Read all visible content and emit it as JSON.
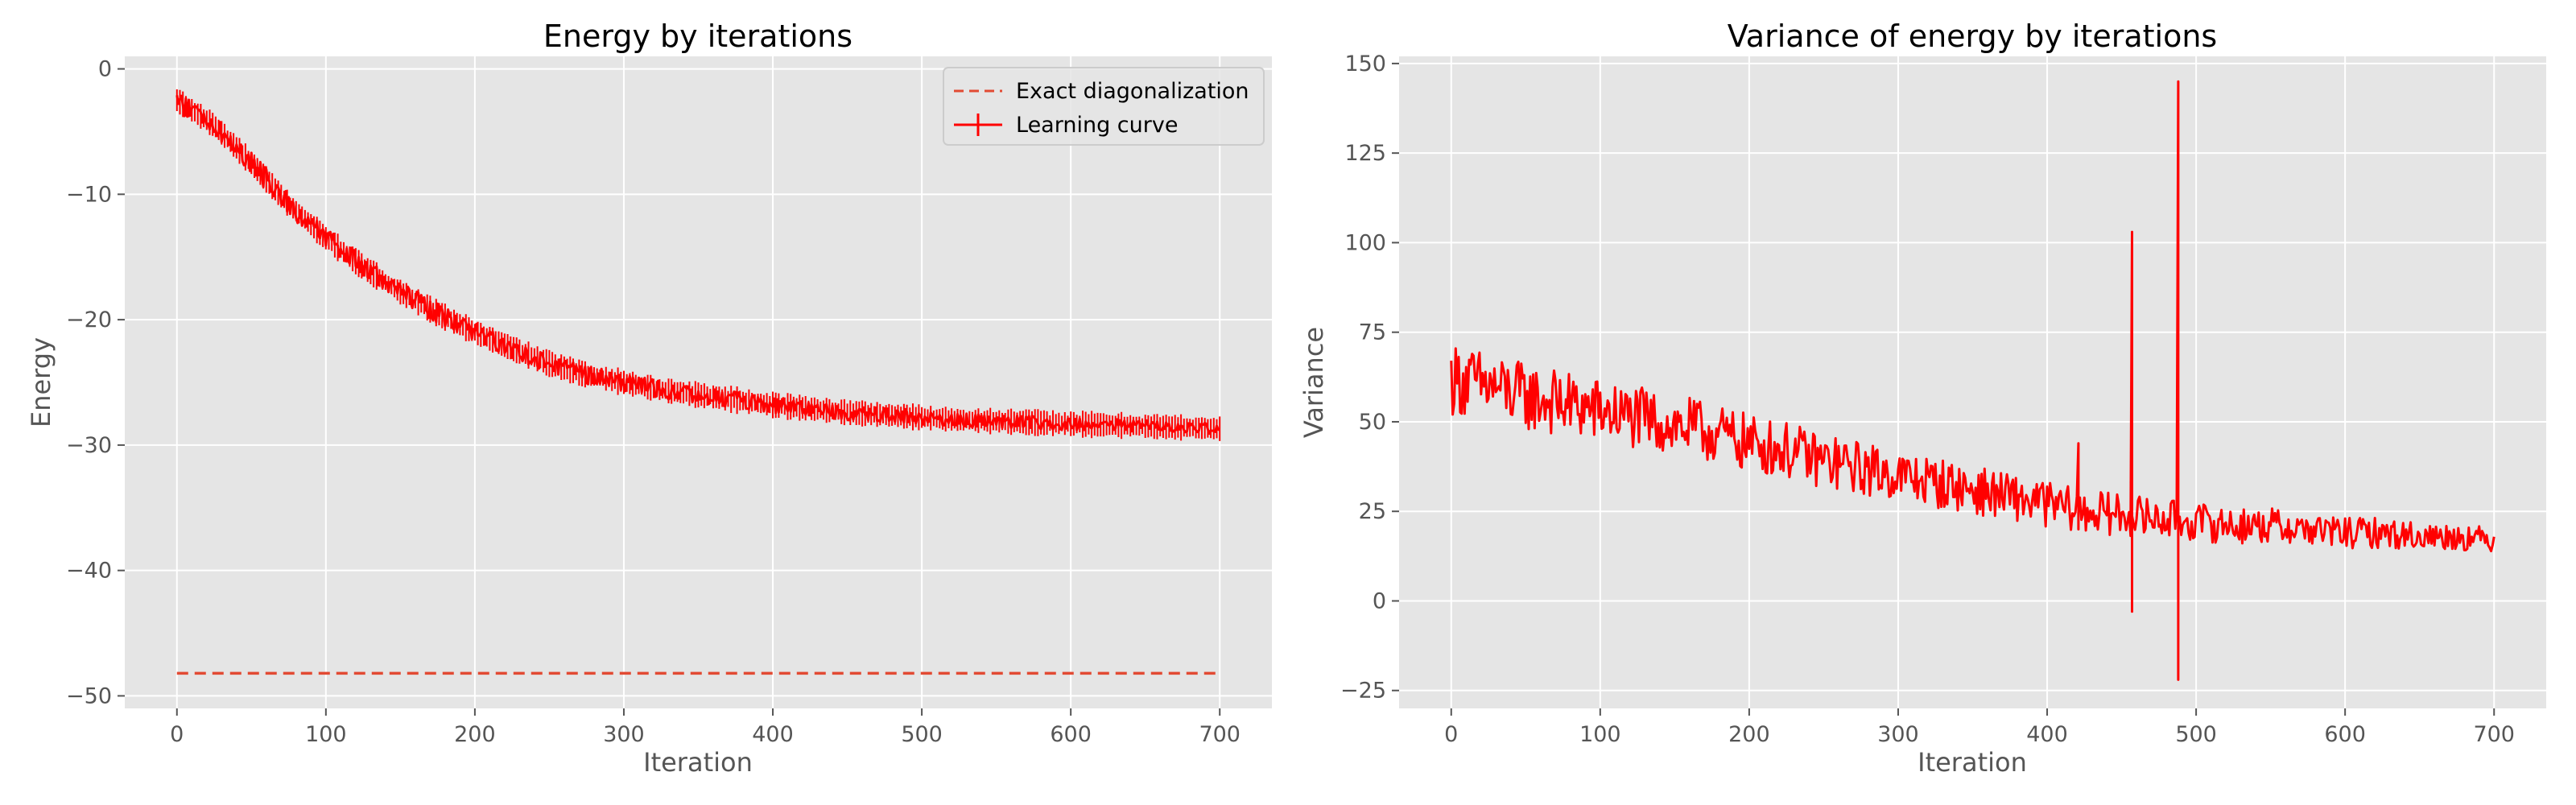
{
  "chart_data": [
    {
      "type": "line",
      "title": "Energy by iterations",
      "xlabel": "Iteration",
      "ylabel": "Energy",
      "xlim": [
        -35,
        735
      ],
      "ylim": [
        -51,
        1
      ],
      "xticks": [
        0,
        100,
        200,
        300,
        400,
        500,
        600,
        700
      ],
      "yticks": [
        0,
        -10,
        -20,
        -30,
        -40,
        -50
      ],
      "xtick_labels": [
        "0",
        "100",
        "200",
        "300",
        "400",
        "500",
        "600",
        "700"
      ],
      "ytick_labels": [
        "0",
        "−10",
        "−20",
        "−30",
        "−40",
        "−50"
      ],
      "grid": true,
      "legend_position": "top-right",
      "series": [
        {
          "name": "Exact diagonalization",
          "style": "dashed",
          "color": "#e24a33",
          "x": [
            0,
            700
          ],
          "y": [
            -48.2,
            -48.2
          ]
        },
        {
          "name": "Learning curve",
          "style": "solid-errorbar",
          "color": "#ff0000",
          "x": [
            0,
            25,
            50,
            75,
            100,
            125,
            150,
            175,
            200,
            225,
            250,
            275,
            300,
            325,
            350,
            375,
            400,
            425,
            450,
            475,
            500,
            525,
            550,
            575,
            600,
            625,
            650,
            675,
            700
          ],
          "y": [
            -2.5,
            -4.5,
            -7.5,
            -10.8,
            -13.5,
            -15.8,
            -17.8,
            -19.5,
            -21.0,
            -22.3,
            -23.5,
            -24.4,
            -25.0,
            -25.6,
            -26.0,
            -26.4,
            -26.8,
            -27.1,
            -27.4,
            -27.6,
            -27.8,
            -28.0,
            -28.1,
            -28.2,
            -28.3,
            -28.4,
            -28.5,
            -28.6,
            -28.7
          ]
        }
      ]
    },
    {
      "type": "line",
      "title": "Variance of energy by iterations",
      "xlabel": "Iteration",
      "ylabel": "Variance",
      "xlim": [
        -35,
        735
      ],
      "ylim": [
        -30,
        152
      ],
      "xticks": [
        0,
        100,
        200,
        300,
        400,
        500,
        600,
        700
      ],
      "yticks": [
        150,
        125,
        100,
        75,
        50,
        25,
        0,
        -25
      ],
      "xtick_labels": [
        "0",
        "100",
        "200",
        "300",
        "400",
        "500",
        "600",
        "700"
      ],
      "ytick_labels": [
        "150",
        "125",
        "100",
        "75",
        "50",
        "25",
        "0",
        "−25"
      ],
      "grid": true,
      "series": [
        {
          "color": "#ff0000",
          "x": [
            0,
            25,
            50,
            75,
            100,
            125,
            150,
            175,
            200,
            225,
            250,
            275,
            300,
            325,
            350,
            375,
            400,
            425,
            450,
            475,
            500,
            525,
            550,
            575,
            600,
            625,
            650,
            675,
            700
          ],
          "y": [
            62,
            60,
            57,
            55,
            53,
            51,
            49,
            47,
            44,
            42,
            39,
            37,
            35,
            33,
            31,
            29,
            27,
            25,
            24,
            23,
            22,
            21,
            21,
            20,
            19,
            19,
            18,
            18,
            17
          ]
        }
      ],
      "spikes": [
        {
          "x": 421,
          "high": 44,
          "low": 20
        },
        {
          "x": 457,
          "high": 103,
          "low": -3
        },
        {
          "x": 488,
          "high": 145,
          "low": -22
        }
      ]
    }
  ]
}
